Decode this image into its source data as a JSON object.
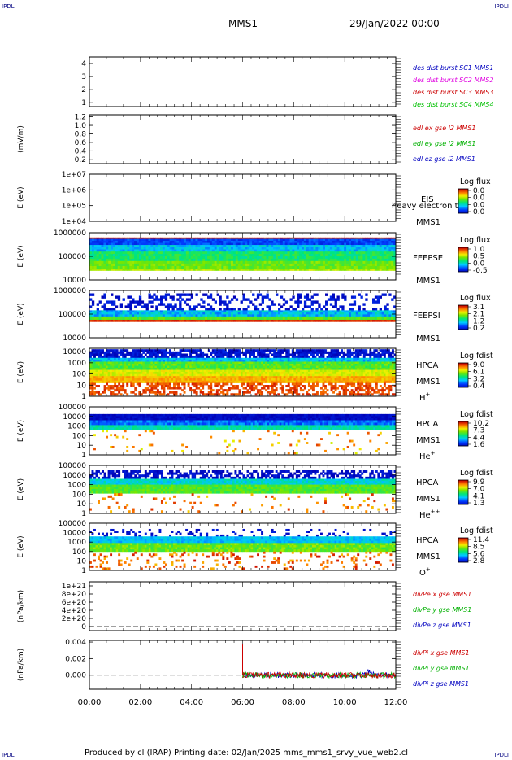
{
  "corners": {
    "tl": "IPDLI",
    "tr": "IPDLI",
    "bl": "IPDLI",
    "br": "IPDLI"
  },
  "header": {
    "title": "MMS1",
    "date": "29/Jan/2022 00:00"
  },
  "footer": {
    "text": "Produced by cl (IRAP)   Printing date: 02/Jan/2025   mms_mms1_srvy_vue_web2.cl"
  },
  "colors": {
    "sc1": "#0000c0",
    "sc2": "#e000e0",
    "sc3": "#cc0000",
    "sc4": "#00c000",
    "x": "#cc0000",
    "y": "#00b000",
    "z": "#0000c0"
  },
  "chart_data": [
    {
      "type": "line",
      "title": "",
      "xlabel": "",
      "ylabel": "",
      "yticks": [
        "1",
        "2",
        "3",
        "4"
      ],
      "ylim": [
        0.7,
        4.5
      ],
      "series": [
        {
          "name": "des dist burst SC1 MMS1",
          "values": []
        },
        {
          "name": "des dist burst SC2 MMS2",
          "values": []
        },
        {
          "name": "des dist burst SC3 MMS3",
          "values": []
        },
        {
          "name": "des dist burst SC4 MMS4",
          "values": []
        }
      ]
    },
    {
      "type": "line",
      "ylabel": "(mV/m)",
      "yticks": [
        "0.2",
        "0.4",
        "0.6",
        "0.8",
        "1.0",
        "1.2"
      ],
      "ylim": [
        0.1,
        1.25
      ],
      "series": [
        {
          "name": "edl ex gse l2 MMS1",
          "values": []
        },
        {
          "name": "edl ey gse l2 MMS1",
          "values": []
        },
        {
          "name": "edl ez gse l2 MMS1",
          "values": []
        }
      ]
    },
    {
      "type": "heatmap",
      "ylabel": "E (eV)",
      "yticks": [
        "1e+04",
        "1e+05",
        "1e+06",
        "1e+07"
      ],
      "ylim": [
        10000,
        10000000
      ],
      "labels": [
        "EIS",
        "MMS1"
      ],
      "overlay": "heavy electron to",
      "colorbar": {
        "label": "Log flux",
        "ticks": [
          "0.0",
          "0.0",
          "0.0",
          "0.0"
        ]
      }
    },
    {
      "type": "heatmap",
      "ylabel": "E (eV)",
      "yticks": [
        "10000",
        "100000",
        "1000000"
      ],
      "ylim": [
        10000,
        1000000
      ],
      "labels": [
        "FEEPSE",
        "MMS1"
      ],
      "colorbar": {
        "label": "Log flux",
        "ticks": [
          "1.0",
          "0.5",
          "0.0",
          "-0.5"
        ]
      }
    },
    {
      "type": "heatmap",
      "ylabel": "E (eV)",
      "yticks": [
        "10000",
        "100000",
        "1000000"
      ],
      "ylim": [
        10000,
        1000000
      ],
      "labels": [
        "FEEPSI",
        "MMS1"
      ],
      "colorbar": {
        "label": "Log flux",
        "ticks": [
          "3.1",
          "2.1",
          "1.2",
          "0.2"
        ]
      }
    },
    {
      "type": "heatmap",
      "ylabel": "E (eV)",
      "yticks": [
        "1",
        "10",
        "100",
        "1000",
        "10000"
      ],
      "ylim": [
        1,
        20000
      ],
      "labels": [
        "HPCA",
        "MMS1"
      ],
      "species": "H",
      "sup": "+",
      "colorbar": {
        "label": "Log fdist",
        "ticks": [
          "9.0",
          "6.1",
          "3.2",
          "0.4"
        ]
      }
    },
    {
      "type": "heatmap",
      "ylabel": "E (eV)",
      "yticks": [
        "1",
        "10",
        "100",
        "1000",
        "10000",
        "100000"
      ],
      "ylim": [
        1,
        100000
      ],
      "labels": [
        "HPCA",
        "MMS1"
      ],
      "species": "He",
      "sup": "+",
      "colorbar": {
        "label": "Log fdist",
        "ticks": [
          "10.2",
          "7.3",
          "4.4",
          "1.6"
        ]
      }
    },
    {
      "type": "heatmap",
      "ylabel": "E (eV)",
      "yticks": [
        "1",
        "10",
        "100",
        "1000",
        "10000",
        "100000"
      ],
      "ylim": [
        1,
        100000
      ],
      "labels": [
        "HPCA",
        "MMS1"
      ],
      "species": "He",
      "sup": "++",
      "colorbar": {
        "label": "Log fdist",
        "ticks": [
          "9.9",
          "7.0",
          "4.1",
          "1.3"
        ]
      }
    },
    {
      "type": "heatmap",
      "ylabel": "E (eV)",
      "yticks": [
        "1",
        "10",
        "100",
        "1000",
        "10000",
        "100000"
      ],
      "ylim": [
        1,
        100000
      ],
      "labels": [
        "HPCA",
        "MMS1"
      ],
      "species": "O",
      "sup": "+",
      "colorbar": {
        "label": "Log fdist",
        "ticks": [
          "11.4",
          "8.5",
          "5.6",
          "2.8"
        ]
      }
    },
    {
      "type": "line",
      "ylabel": "(nPa/km)",
      "yticks": [
        "0",
        "2e+20",
        "4e+20",
        "6e+20",
        "8e+20",
        "1e+21"
      ],
      "ylim": [
        -1e+20,
        1.1e+21
      ],
      "series": [
        {
          "name": "divPe x gse MMS1",
          "values": []
        },
        {
          "name": "divPe y gse MMS1",
          "values": []
        },
        {
          "name": "divPe z gse MMS1",
          "values": []
        }
      ]
    },
    {
      "type": "line",
      "ylabel": "(nPa/km)",
      "yticks": [
        "0.000",
        "0.002",
        "0.004"
      ],
      "ylim": [
        -0.0017,
        0.0042
      ],
      "spike_at": "06:00",
      "data_start": "06:00",
      "series": [
        {
          "name": "divPi x gse MMS1",
          "values": []
        },
        {
          "name": "divPi y gse MMS1",
          "values": []
        },
        {
          "name": "divPi z gse MMS1",
          "values": []
        }
      ]
    }
  ],
  "xaxis": {
    "ticks": [
      "00:00",
      "02:00",
      "04:00",
      "06:00",
      "08:00",
      "10:00",
      "12:00"
    ]
  }
}
